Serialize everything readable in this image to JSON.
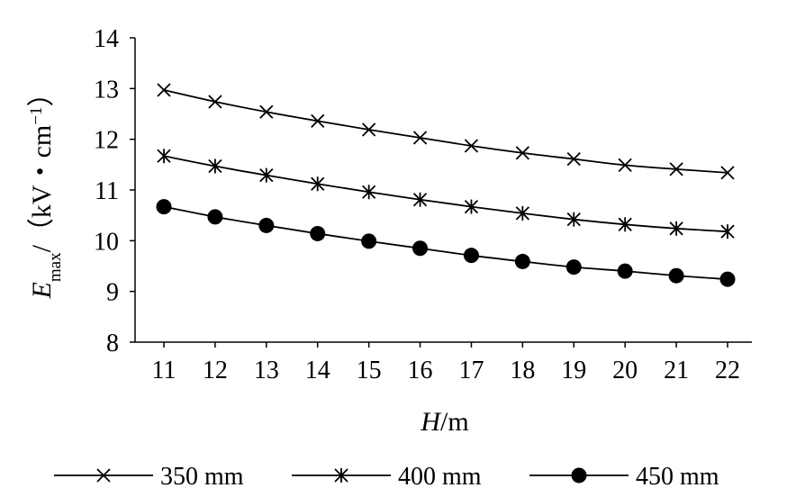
{
  "chart_data": {
    "type": "line",
    "x": [
      11,
      12,
      13,
      14,
      15,
      16,
      17,
      18,
      19,
      20,
      21,
      22
    ],
    "xlabel": {
      "var": "H",
      "unit": "/m"
    },
    "ylabel": {
      "var": "E",
      "sub": "max",
      "unit_pre": "/（kV・cm",
      "sup": "−1",
      "unit_post": "）"
    },
    "ylim": [
      8,
      14
    ],
    "yticks": [
      8,
      9,
      10,
      11,
      12,
      13,
      14
    ],
    "grid": false,
    "legend_position": "bottom",
    "series": [
      {
        "name": "350 mm",
        "marker": "x",
        "values": [
          12.97,
          12.74,
          12.54,
          12.36,
          12.19,
          12.03,
          11.87,
          11.73,
          11.61,
          11.49,
          11.41,
          11.34
        ]
      },
      {
        "name": "400 mm",
        "marker": "asterisk",
        "values": [
          11.67,
          11.47,
          11.29,
          11.12,
          10.96,
          10.81,
          10.67,
          10.54,
          10.42,
          10.32,
          10.24,
          10.18
        ]
      },
      {
        "name": "450 mm",
        "marker": "filled-circle",
        "values": [
          10.67,
          10.47,
          10.3,
          10.14,
          9.99,
          9.85,
          9.71,
          9.59,
          9.48,
          9.4,
          9.31,
          9.24
        ]
      }
    ]
  }
}
